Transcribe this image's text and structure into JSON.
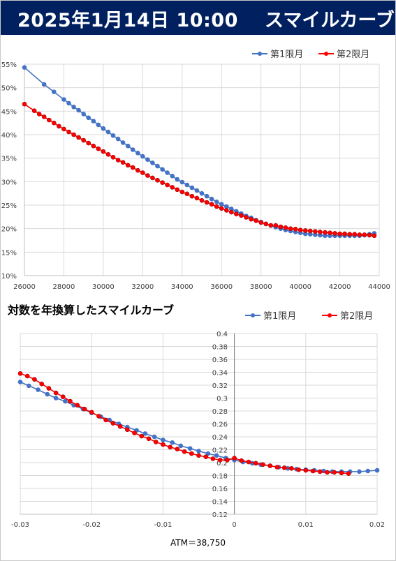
{
  "header": {
    "date": "2025年1月14日 10:00",
    "title": "スマイルカーブ"
  },
  "colors": {
    "header_bg": "#002060",
    "series1": "#4472C4",
    "series2": "#FF0000",
    "grid": "#d9d9d9"
  },
  "chart2_title": "対数を年換算したスマイルカーブ",
  "atm_label": "ATM＝38,750",
  "chart_data": [
    {
      "type": "line",
      "xlim": [
        26000,
        44000
      ],
      "ylim": [
        0.1,
        0.55
      ],
      "x_ticks": [
        26000,
        28000,
        30000,
        32000,
        34000,
        36000,
        38000,
        40000,
        42000,
        44000
      ],
      "y_ticks": [
        0.1,
        0.15,
        0.2,
        0.25,
        0.3,
        0.35,
        0.4,
        0.45,
        0.5,
        0.55
      ],
      "x_tick_labels": [
        "26000",
        "28000",
        "30000",
        "32000",
        "34000",
        "36000",
        "38000",
        "40000",
        "42000",
        "44000"
      ],
      "y_tick_labels": [
        "10%",
        "15%",
        "20%",
        "25%",
        "30%",
        "35%",
        "40%",
        "45%",
        "50%",
        "55%"
      ],
      "grid": true,
      "legend": "top-right",
      "series": [
        {
          "name": "第1限月",
          "color": "#4472C4",
          "points": [
            [
              26000,
              0.543
            ],
            [
              27000,
              0.507
            ],
            [
              27500,
              0.491
            ],
            [
              28000,
              0.475
            ],
            [
              28250,
              0.467
            ],
            [
              28500,
              0.459
            ],
            [
              28750,
              0.452
            ],
            [
              29000,
              0.444
            ],
            [
              29250,
              0.436
            ],
            [
              29500,
              0.429
            ],
            [
              29750,
              0.421
            ],
            [
              30000,
              0.413
            ],
            [
              30250,
              0.406
            ],
            [
              30500,
              0.398
            ],
            [
              30750,
              0.391
            ],
            [
              31000,
              0.383
            ],
            [
              31250,
              0.376
            ],
            [
              31500,
              0.368
            ],
            [
              31750,
              0.361
            ],
            [
              32000,
              0.354
            ],
            [
              32250,
              0.347
            ],
            [
              32500,
              0.34
            ],
            [
              32750,
              0.333
            ],
            [
              33000,
              0.326
            ],
            [
              33250,
              0.319
            ],
            [
              33500,
              0.312
            ],
            [
              33750,
              0.305
            ],
            [
              34000,
              0.299
            ],
            [
              34250,
              0.293
            ],
            [
              34500,
              0.287
            ],
            [
              34750,
              0.281
            ],
            [
              35000,
              0.275
            ],
            [
              35250,
              0.269
            ],
            [
              35500,
              0.263
            ],
            [
              35750,
              0.257
            ],
            [
              36000,
              0.252
            ],
            [
              36250,
              0.247
            ],
            [
              36500,
              0.242
            ],
            [
              36750,
              0.237
            ],
            [
              37000,
              0.232
            ],
            [
              37250,
              0.227
            ],
            [
              37500,
              0.223
            ],
            [
              37750,
              0.218
            ],
            [
              38000,
              0.214
            ],
            [
              38250,
              0.21
            ],
            [
              38500,
              0.207
            ],
            [
              38750,
              0.203
            ],
            [
              39000,
              0.2
            ],
            [
              39250,
              0.197
            ],
            [
              39500,
              0.195
            ],
            [
              39750,
              0.193
            ],
            [
              40000,
              0.191
            ],
            [
              40250,
              0.189
            ],
            [
              40500,
              0.188
            ],
            [
              40750,
              0.187
            ],
            [
              41000,
              0.186
            ],
            [
              41250,
              0.185
            ],
            [
              41500,
              0.185
            ],
            [
              41750,
              0.185
            ],
            [
              42000,
              0.185
            ],
            [
              42250,
              0.185
            ],
            [
              42500,
              0.185
            ],
            [
              42750,
              0.185
            ],
            [
              43000,
              0.185
            ],
            [
              43250,
              0.186
            ],
            [
              43500,
              0.188
            ],
            [
              43750,
              0.19
            ]
          ]
        },
        {
          "name": "第2限月",
          "color": "#FF0000",
          "points": [
            [
              26000,
              0.465
            ],
            [
              26500,
              0.451
            ],
            [
              26750,
              0.444
            ],
            [
              27000,
              0.438
            ],
            [
              27250,
              0.431
            ],
            [
              27500,
              0.425
            ],
            [
              27750,
              0.418
            ],
            [
              28000,
              0.412
            ],
            [
              28250,
              0.406
            ],
            [
              28500,
              0.4
            ],
            [
              28750,
              0.394
            ],
            [
              29000,
              0.388
            ],
            [
              29250,
              0.382
            ],
            [
              29500,
              0.376
            ],
            [
              29750,
              0.37
            ],
            [
              30000,
              0.364
            ],
            [
              30250,
              0.358
            ],
            [
              30500,
              0.352
            ],
            [
              30750,
              0.346
            ],
            [
              31000,
              0.341
            ],
            [
              31250,
              0.335
            ],
            [
              31500,
              0.33
            ],
            [
              31750,
              0.324
            ],
            [
              32000,
              0.319
            ],
            [
              32250,
              0.313
            ],
            [
              32500,
              0.308
            ],
            [
              32750,
              0.303
            ],
            [
              33000,
              0.298
            ],
            [
              33250,
              0.293
            ],
            [
              33500,
              0.288
            ],
            [
              33750,
              0.283
            ],
            [
              34000,
              0.278
            ],
            [
              34250,
              0.274
            ],
            [
              34500,
              0.269
            ],
            [
              34750,
              0.265
            ],
            [
              35000,
              0.26
            ],
            [
              35250,
              0.256
            ],
            [
              35500,
              0.252
            ],
            [
              35750,
              0.247
            ],
            [
              36000,
              0.243
            ],
            [
              36250,
              0.239
            ],
            [
              36500,
              0.235
            ],
            [
              36750,
              0.231
            ],
            [
              37000,
              0.228
            ],
            [
              37250,
              0.224
            ],
            [
              37500,
              0.22
            ],
            [
              37750,
              0.217
            ],
            [
              38000,
              0.213
            ],
            [
              38250,
              0.21
            ],
            [
              38500,
              0.207
            ],
            [
              38750,
              0.207
            ],
            [
              39000,
              0.204
            ],
            [
              39250,
              0.202
            ],
            [
              39500,
              0.2
            ],
            [
              39750,
              0.199
            ],
            [
              40000,
              0.197
            ],
            [
              40250,
              0.196
            ],
            [
              40500,
              0.195
            ],
            [
              40750,
              0.194
            ],
            [
              41000,
              0.193
            ],
            [
              41250,
              0.192
            ],
            [
              41500,
              0.191
            ],
            [
              41750,
              0.19
            ],
            [
              42000,
              0.189
            ],
            [
              42250,
              0.189
            ],
            [
              42500,
              0.188
            ],
            [
              42750,
              0.188
            ],
            [
              43000,
              0.187
            ],
            [
              43250,
              0.187
            ],
            [
              43500,
              0.186
            ],
            [
              43750,
              0.185
            ]
          ]
        }
      ]
    },
    {
      "type": "line",
      "title": "対数を年換算したスマイルカーブ",
      "xlim": [
        -0.03,
        0.02
      ],
      "ylim": [
        0.12,
        0.4
      ],
      "x_ticks": [
        -0.03,
        -0.02,
        -0.01,
        0,
        0.01,
        0.02
      ],
      "y_ticks": [
        0.12,
        0.14,
        0.16,
        0.18,
        0.2,
        0.22,
        0.24,
        0.26,
        0.28,
        0.3,
        0.32,
        0.34,
        0.36,
        0.38,
        0.4
      ],
      "x_tick_labels": [
        "-0.03",
        "-0.02",
        "-0.01",
        "0",
        "0.01",
        "0.02"
      ],
      "y_tick_labels": [
        "0.12",
        "0.14",
        "0.16",
        "0.18",
        "0.2",
        "0.22",
        "0.24",
        "0.26",
        "0.28",
        "0.3",
        "0.32",
        "0.34",
        "0.36",
        "0.38",
        "0.4"
      ],
      "y_axis_position": "x=0",
      "grid": true,
      "legend": "top-right",
      "series": [
        {
          "name": "第1限月",
          "color": "#4472C4",
          "points": [
            [
              -0.03,
              0.325
            ],
            [
              -0.0288,
              0.319
            ],
            [
              -0.0275,
              0.313
            ],
            [
              -0.0262,
              0.306
            ],
            [
              -0.025,
              0.3
            ],
            [
              -0.0237,
              0.295
            ],
            [
              -0.0225,
              0.289
            ],
            [
              -0.0212,
              0.283
            ],
            [
              -0.02,
              0.277
            ],
            [
              -0.0187,
              0.271
            ],
            [
              -0.0175,
              0.266
            ],
            [
              -0.0162,
              0.26
            ],
            [
              -0.015,
              0.255
            ],
            [
              -0.0137,
              0.25
            ],
            [
              -0.0125,
              0.245
            ],
            [
              -0.0112,
              0.24
            ],
            [
              -0.01,
              0.235
            ],
            [
              -0.0087,
              0.231
            ],
            [
              -0.0075,
              0.226
            ],
            [
              -0.0062,
              0.222
            ],
            [
              -0.005,
              0.218
            ],
            [
              -0.0037,
              0.214
            ],
            [
              -0.0025,
              0.211
            ],
            [
              -0.0012,
              0.207
            ],
            [
              0,
              0.204
            ],
            [
              0.0012,
              0.201
            ],
            [
              0.0025,
              0.199
            ],
            [
              0.0037,
              0.197
            ],
            [
              0.005,
              0.195
            ],
            [
              0.0062,
              0.193
            ],
            [
              0.0075,
              0.191
            ],
            [
              0.0087,
              0.19
            ],
            [
              0.01,
              0.189
            ],
            [
              0.0112,
              0.188
            ],
            [
              0.0125,
              0.187
            ],
            [
              0.0137,
              0.186
            ],
            [
              0.015,
              0.186
            ],
            [
              0.0162,
              0.186
            ],
            [
              0.0175,
              0.186
            ],
            [
              0.0187,
              0.187
            ],
            [
              0.02,
              0.188
            ]
          ]
        },
        {
          "name": "第2限月",
          "color": "#FF0000",
          "points": [
            [
              -0.03,
              0.338
            ],
            [
              -0.029,
              0.334
            ],
            [
              -0.028,
              0.329
            ],
            [
              -0.027,
              0.322
            ],
            [
              -0.026,
              0.315
            ],
            [
              -0.025,
              0.308
            ],
            [
              -0.024,
              0.302
            ],
            [
              -0.023,
              0.295
            ],
            [
              -0.022,
              0.289
            ],
            [
              -0.021,
              0.283
            ],
            [
              -0.02,
              0.278
            ],
            [
              -0.019,
              0.272
            ],
            [
              -0.018,
              0.266
            ],
            [
              -0.017,
              0.261
            ],
            [
              -0.016,
              0.256
            ],
            [
              -0.015,
              0.251
            ],
            [
              -0.014,
              0.246
            ],
            [
              -0.013,
              0.241
            ],
            [
              -0.012,
              0.237
            ],
            [
              -0.011,
              0.232
            ],
            [
              -0.01,
              0.228
            ],
            [
              -0.009,
              0.224
            ],
            [
              -0.008,
              0.221
            ],
            [
              -0.007,
              0.217
            ],
            [
              -0.006,
              0.214
            ],
            [
              -0.005,
              0.211
            ],
            [
              -0.004,
              0.209
            ],
            [
              -0.003,
              0.206
            ],
            [
              -0.002,
              0.204
            ],
            [
              -0.001,
              0.204
            ],
            [
              0,
              0.207
            ],
            [
              0.001,
              0.203
            ],
            [
              0.002,
              0.201
            ],
            [
              0.003,
              0.199
            ],
            [
              0.004,
              0.197
            ],
            [
              0.005,
              0.195
            ],
            [
              0.006,
              0.193
            ],
            [
              0.007,
              0.192
            ],
            [
              0.008,
              0.191
            ],
            [
              0.009,
              0.189
            ],
            [
              0.01,
              0.188
            ],
            [
              0.011,
              0.187
            ],
            [
              0.012,
              0.186
            ],
            [
              0.013,
              0.185
            ],
            [
              0.014,
              0.185
            ],
            [
              0.015,
              0.184
            ],
            [
              0.016,
              0.183
            ]
          ]
        }
      ]
    }
  ]
}
